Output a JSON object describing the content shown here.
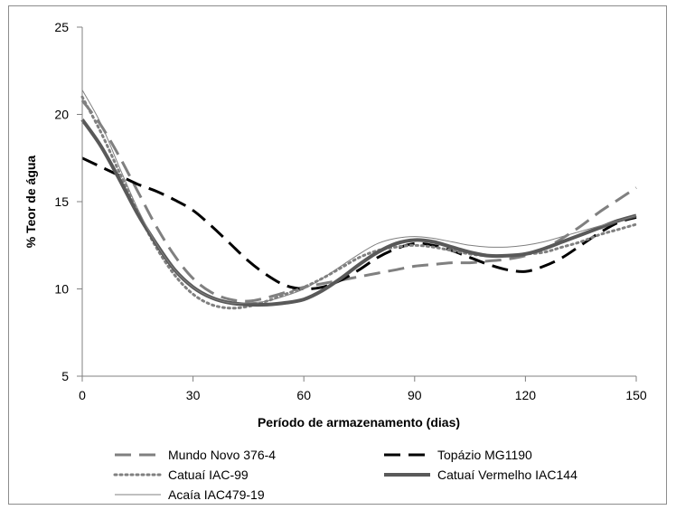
{
  "chart_data": {
    "type": "line",
    "xlabel": "Período de armazenamento (dias)",
    "ylabel": "% Teor de água",
    "xlim": [
      0,
      150
    ],
    "ylim": [
      5,
      25
    ],
    "xticks": [
      0,
      30,
      60,
      90,
      120,
      150
    ],
    "yticks": [
      5,
      10,
      15,
      20,
      25
    ],
    "grid": false,
    "legend_position": "bottom",
    "series": [
      {
        "name": "Mundo Novo 376-4",
        "color": "#808080",
        "style": "dashed",
        "x": [
          0,
          5,
          10,
          15,
          20,
          25,
          30,
          35,
          40,
          45,
          50,
          55,
          60,
          65,
          70,
          75,
          80,
          85,
          90,
          95,
          100,
          105,
          110,
          115,
          120,
          125,
          130,
          135,
          140,
          145,
          150
        ],
        "y": [
          20.8,
          19.4,
          17.6,
          15.6,
          13.6,
          11.9,
          10.6,
          9.8,
          9.4,
          9.3,
          9.5,
          9.8,
          10.1,
          10.3,
          10.5,
          10.7,
          10.9,
          11.1,
          11.3,
          11.4,
          11.5,
          11.5,
          11.6,
          11.7,
          11.9,
          12.3,
          12.9,
          13.6,
          14.4,
          15.1,
          15.8
        ]
      },
      {
        "name": "Topázio MG1190",
        "color": "#000000",
        "style": "dashed",
        "x": [
          0,
          5,
          10,
          15,
          20,
          25,
          30,
          35,
          40,
          45,
          50,
          55,
          60,
          65,
          70,
          75,
          80,
          85,
          90,
          95,
          100,
          105,
          110,
          115,
          120,
          125,
          130,
          135,
          140,
          145,
          150
        ],
        "y": [
          17.5,
          17.0,
          16.5,
          16.0,
          15.6,
          15.1,
          14.5,
          13.6,
          12.6,
          11.6,
          10.8,
          10.2,
          10.0,
          10.1,
          10.5,
          11.1,
          11.8,
          12.3,
          12.6,
          12.5,
          12.2,
          11.8,
          11.4,
          11.1,
          11.0,
          11.3,
          11.8,
          12.5,
          13.2,
          13.8,
          14.1
        ]
      },
      {
        "name": "Catuaí IAC-99",
        "color": "#808080",
        "style": "dotted",
        "x": [
          0,
          5,
          10,
          15,
          20,
          25,
          30,
          35,
          40,
          45,
          50,
          55,
          60,
          65,
          70,
          75,
          80,
          85,
          90,
          95,
          100,
          105,
          110,
          115,
          120,
          125,
          130,
          135,
          140,
          145,
          150
        ],
        "y": [
          21.0,
          19.0,
          16.7,
          14.4,
          12.4,
          10.8,
          9.7,
          9.1,
          8.9,
          9.0,
          9.3,
          9.7,
          10.1,
          10.6,
          11.2,
          11.8,
          12.2,
          12.4,
          12.5,
          12.4,
          12.2,
          12.0,
          11.9,
          11.9,
          12.0,
          12.1,
          12.4,
          12.7,
          13.1,
          13.4,
          13.7
        ]
      },
      {
        "name": "Catuaí Vermelho IAC144",
        "color": "#595959",
        "style": "solid-thick",
        "x": [
          0,
          5,
          10,
          15,
          20,
          25,
          30,
          35,
          40,
          45,
          50,
          55,
          60,
          65,
          70,
          75,
          80,
          85,
          90,
          95,
          100,
          105,
          110,
          115,
          120,
          125,
          130,
          135,
          140,
          145,
          150
        ],
        "y": [
          19.7,
          18.2,
          16.3,
          14.3,
          12.6,
          11.1,
          10.1,
          9.5,
          9.2,
          9.1,
          9.1,
          9.2,
          9.4,
          9.9,
          10.6,
          11.4,
          12.1,
          12.6,
          12.8,
          12.7,
          12.4,
          12.1,
          11.9,
          11.9,
          12.0,
          12.3,
          12.7,
          13.1,
          13.5,
          13.9,
          14.2
        ]
      },
      {
        "name": "Acaía IAC479-19",
        "color": "#808080",
        "style": "solid-thin",
        "x": [
          0,
          5,
          10,
          15,
          20,
          25,
          30,
          35,
          40,
          45,
          50,
          55,
          60,
          65,
          70,
          75,
          80,
          85,
          90,
          95,
          100,
          105,
          110,
          115,
          120,
          125,
          130,
          135,
          140,
          145,
          150
        ],
        "y": [
          21.4,
          19.5,
          17.0,
          14.6,
          12.6,
          11.1,
          10.1,
          9.5,
          9.2,
          9.2,
          9.3,
          9.6,
          10.0,
          10.6,
          11.3,
          12.0,
          12.6,
          12.9,
          13.0,
          12.9,
          12.7,
          12.5,
          12.4,
          12.4,
          12.5,
          12.7,
          13.0,
          13.3,
          13.6,
          13.9,
          14.2
        ]
      }
    ]
  }
}
